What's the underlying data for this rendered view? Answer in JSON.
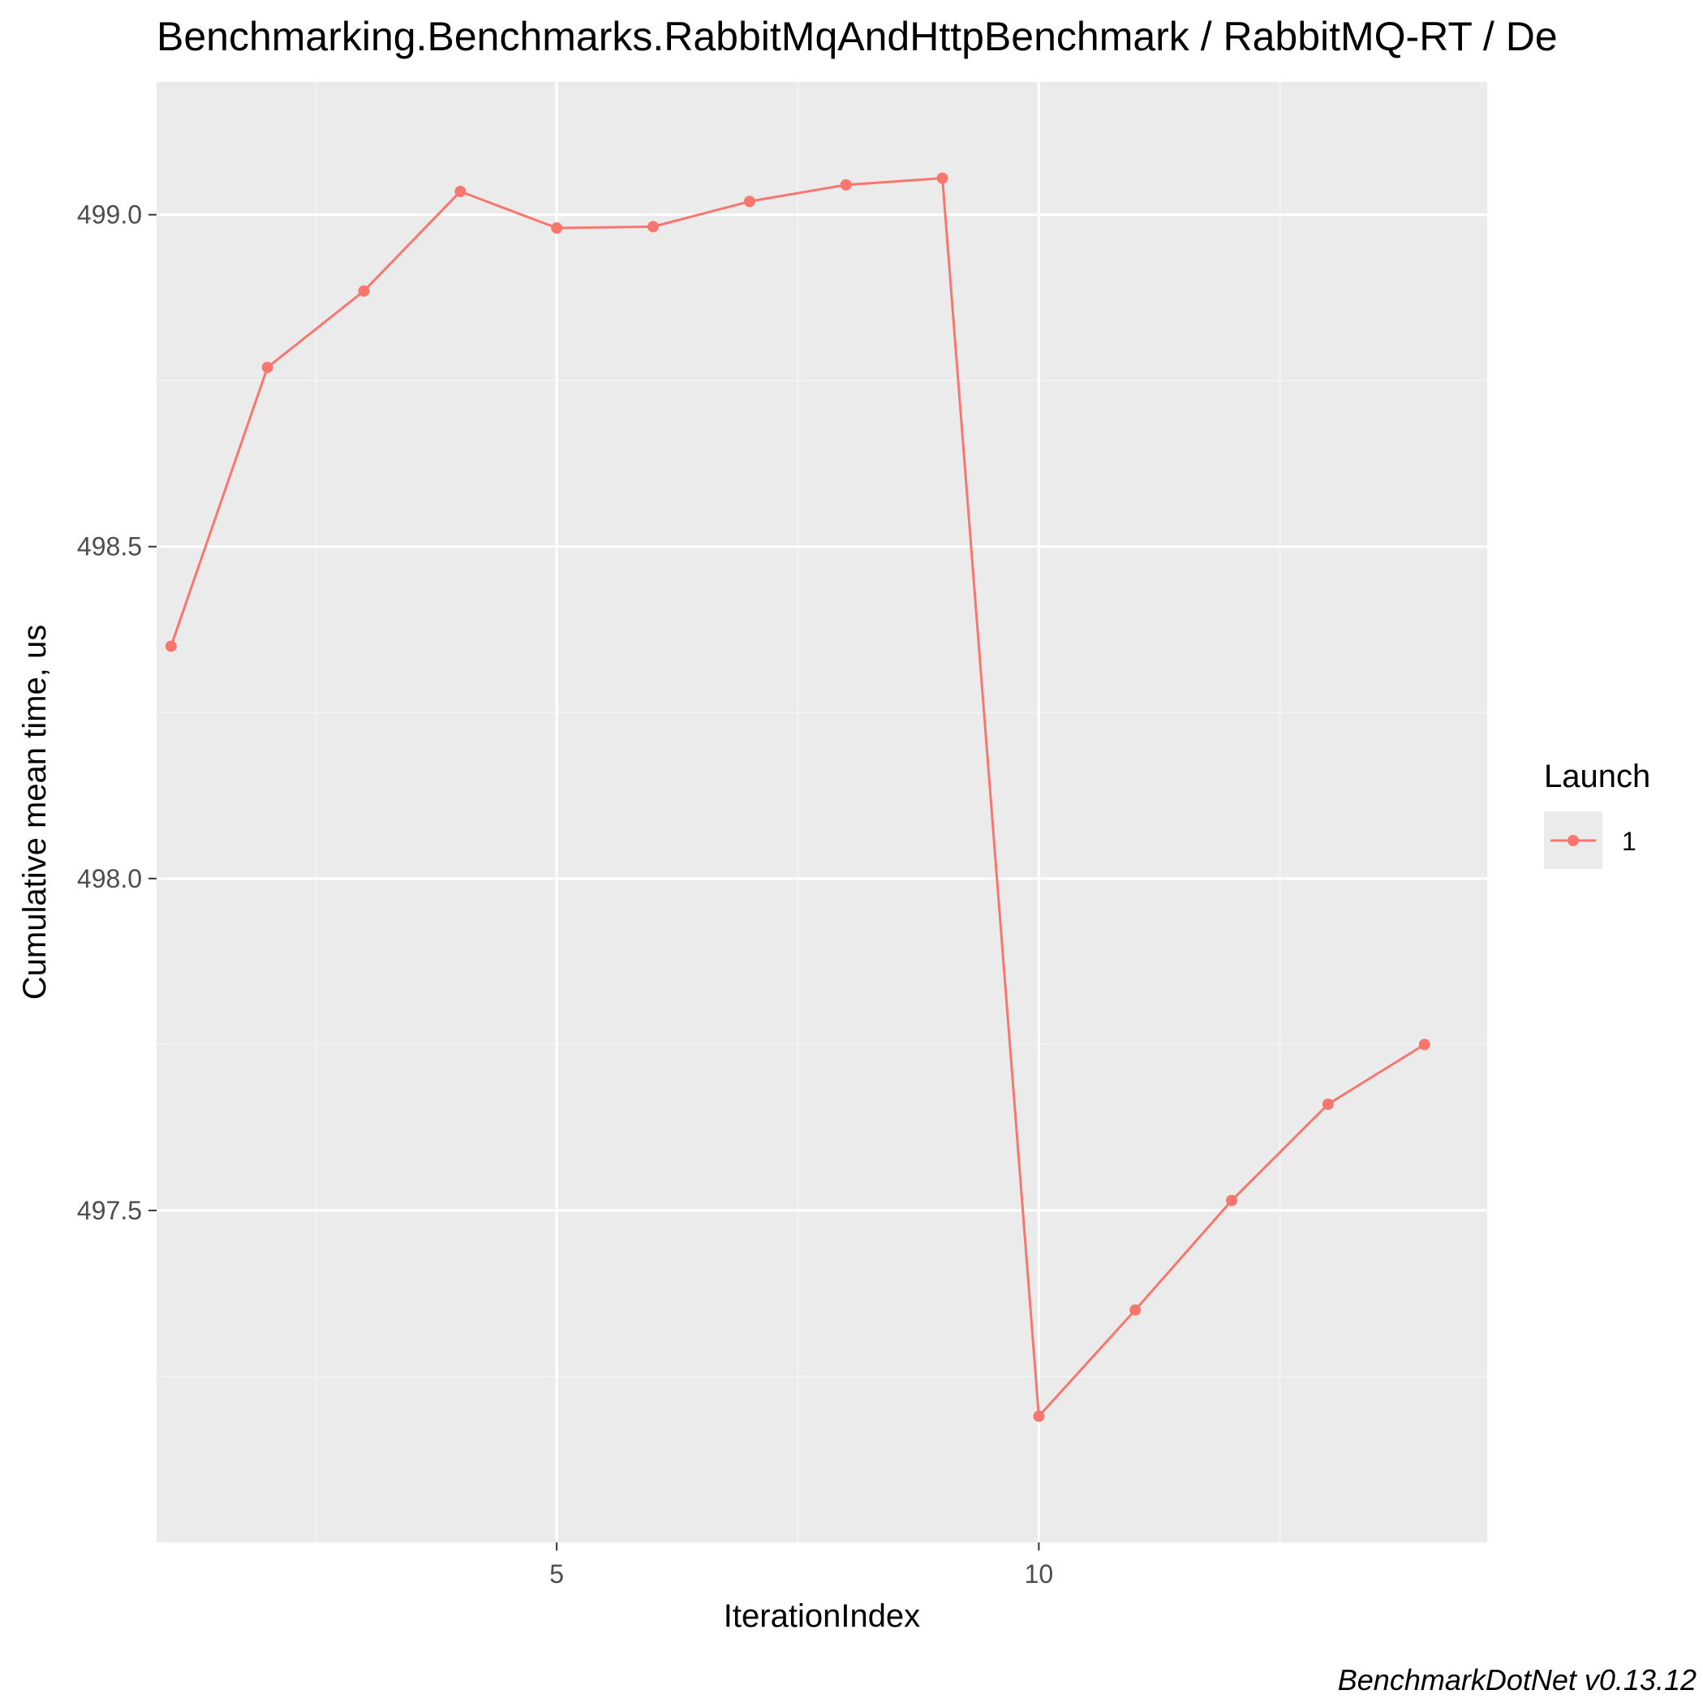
{
  "chart_data": {
    "type": "line",
    "title": "Benchmarking.Benchmarks.RabbitMqAndHttpBenchmark / RabbitMQ-RT / De",
    "xlabel": "IterationIndex",
    "ylabel": "Cumulative mean time, us",
    "caption": "BenchmarkDotNet v0.13.12",
    "xlim": [
      0.85,
      14.65
    ],
    "ylim": [
      497.0,
      499.2
    ],
    "x_ticks": [
      5,
      10
    ],
    "x_tick_labels": [
      "5",
      "10"
    ],
    "x_minor_ticks": [
      2.5,
      7.5,
      12.5
    ],
    "y_ticks": [
      497.5,
      498.0,
      498.5,
      499.0
    ],
    "y_tick_labels": [
      "497.5",
      "498.0",
      "498.5",
      "499.0"
    ],
    "y_minor_ticks": [
      497.25,
      497.75,
      498.25,
      498.75
    ],
    "grid": true,
    "legend": {
      "title": "Launch",
      "position": "right"
    },
    "series": [
      {
        "name": "1",
        "color": "#F8766D",
        "x": [
          1,
          2,
          3,
          4,
          5,
          6,
          7,
          8,
          9,
          10,
          11,
          12,
          13,
          14
        ],
        "y": [
          498.35,
          498.77,
          498.885,
          499.035,
          498.98,
          498.982,
          499.02,
          499.045,
          499.055,
          497.19,
          497.35,
          497.515,
          497.66,
          497.75
        ]
      }
    ]
  },
  "colors": {
    "panel_background": "#EBEBEB",
    "grid_major": "#FFFFFF",
    "grid_minor": "#F5F5F5",
    "series": "#F8766D"
  }
}
